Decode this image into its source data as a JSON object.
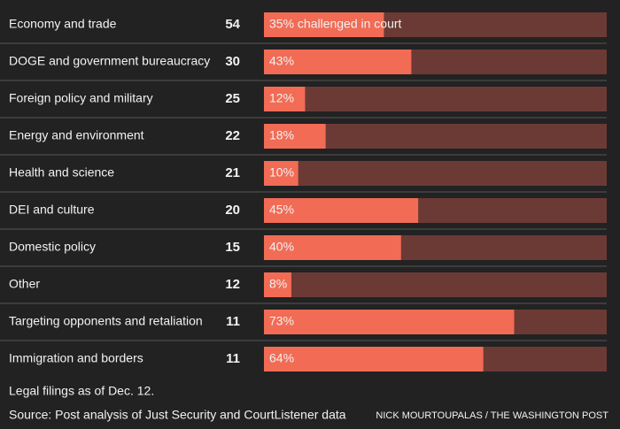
{
  "chart_data": {
    "type": "bar",
    "categories": [
      "Economy and trade",
      "DOGE and government bureaucracy",
      "Foreign policy and military",
      "Energy and environment",
      "Health and science",
      "DEI and culture",
      "Domestic policy",
      "Other",
      "Targeting opponents and retaliation",
      "Immigration and borders"
    ],
    "counts": [
      54,
      30,
      25,
      22,
      21,
      20,
      15,
      12,
      11,
      11
    ],
    "values": [
      35,
      43,
      12,
      18,
      10,
      45,
      40,
      8,
      73,
      64
    ],
    "value_labels": [
      "35% challenged in court",
      "43%",
      "12%",
      "18%",
      "10%",
      "45%",
      "40%",
      "8%",
      "73%",
      "64%"
    ],
    "xlim": [
      0,
      100
    ],
    "color": "#f26b55",
    "track_color": "#6b3a35",
    "note": "Legal filings as of Dec. 12.",
    "source": "Source: Post analysis of Just Security and CourtListener data",
    "credit": "NICK MOURTOUPALAS / THE WASHINGTON POST"
  }
}
